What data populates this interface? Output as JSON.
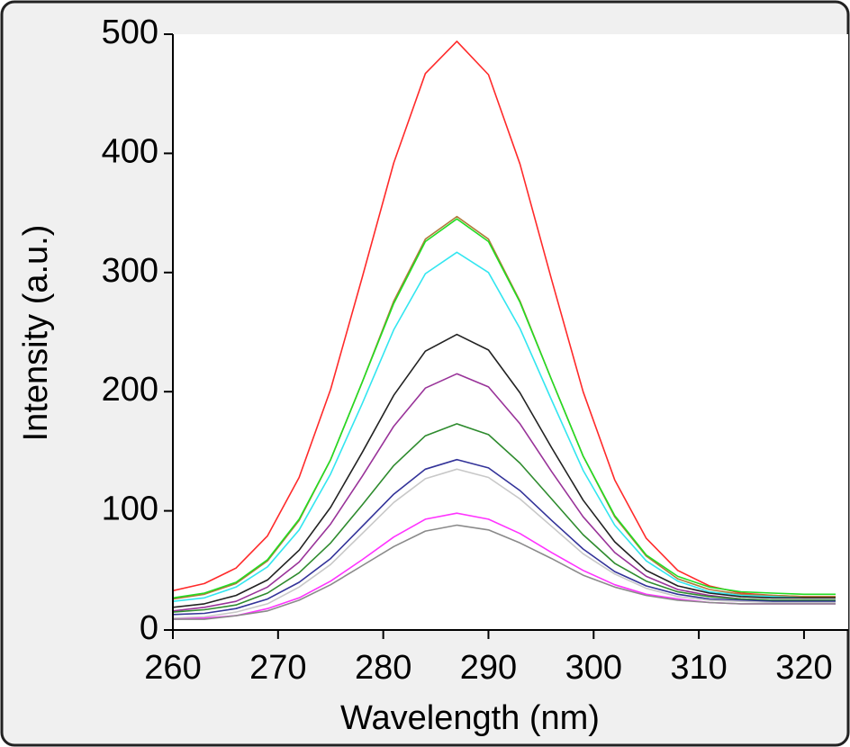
{
  "chart_data": {
    "type": "line",
    "xlabel": "Wavelength (nm)",
    "ylabel": "Intensity (a.u.)",
    "x": [
      260,
      263,
      266,
      269,
      272,
      275,
      278,
      281,
      284,
      287,
      290,
      293,
      296,
      299,
      302,
      305,
      308,
      311,
      314,
      317,
      320,
      323
    ],
    "xlim": [
      260,
      324.2
    ],
    "xticks": [
      260,
      270,
      280,
      290,
      300,
      310,
      320
    ],
    "ylim": [
      0,
      500
    ],
    "yticks": [
      0,
      100,
      200,
      300,
      400,
      500
    ],
    "series": [
      {
        "color": "#ff2a2a",
        "values": [
          33,
          39,
          52,
          79,
          128,
          202,
          296,
          392,
          467,
          494,
          466,
          391,
          294,
          200,
          126,
          77,
          50,
          37,
          31,
          29,
          28,
          28
        ]
      },
      {
        "color": "#b07a3a",
        "values": [
          26,
          30,
          39,
          58,
          92,
          143,
          208,
          276,
          328,
          347,
          328,
          276,
          210,
          146,
          95,
          62,
          43,
          34,
          30,
          29,
          28,
          28
        ]
      },
      {
        "color": "#22dd22",
        "values": [
          27,
          31,
          40,
          59,
          93,
          143,
          208,
          274,
          326,
          345,
          326,
          275,
          210,
          146,
          96,
          63,
          45,
          36,
          32,
          31,
          30,
          30
        ]
      },
      {
        "color": "#33e6f0",
        "values": [
          24,
          27,
          36,
          53,
          84,
          131,
          190,
          252,
          299,
          317,
          300,
          253,
          193,
          134,
          88,
          58,
          41,
          32,
          29,
          28,
          27,
          27
        ]
      },
      {
        "color": "#222222",
        "values": [
          19,
          22,
          29,
          42,
          67,
          103,
          149,
          197,
          234,
          248,
          235,
          199,
          153,
          109,
          74,
          50,
          37,
          31,
          28,
          27,
          27,
          27
        ]
      },
      {
        "color": "#993399",
        "values": [
          16,
          19,
          24,
          36,
          57,
          89,
          129,
          171,
          203,
          215,
          204,
          173,
          133,
          95,
          65,
          45,
          34,
          29,
          26,
          25,
          25,
          25
        ]
      },
      {
        "color": "#2e8b2e",
        "values": [
          15,
          17,
          21,
          31,
          48,
          73,
          105,
          138,
          163,
          173,
          164,
          140,
          110,
          80,
          56,
          41,
          32,
          28,
          26,
          25,
          25,
          25
        ]
      },
      {
        "color": "#333399",
        "values": [
          13,
          14,
          18,
          26,
          40,
          60,
          87,
          114,
          135,
          143,
          136,
          117,
          92,
          68,
          49,
          37,
          30,
          26,
          25,
          24,
          24,
          24
        ]
      },
      {
        "color": "#c8c8c8",
        "values": [
          10,
          11,
          15,
          22,
          36,
          55,
          81,
          107,
          127,
          135,
          128,
          110,
          87,
          64,
          47,
          35,
          28,
          25,
          24,
          23,
          23,
          23
        ]
      },
      {
        "color": "#ff33ff",
        "values": [
          9,
          10,
          12,
          18,
          27,
          41,
          59,
          78,
          93,
          98,
          93,
          81,
          65,
          50,
          38,
          30,
          26,
          23,
          22,
          22,
          22,
          22
        ]
      },
      {
        "color": "#8a8a8a",
        "values": [
          9,
          9,
          12,
          16,
          25,
          38,
          54,
          70,
          83,
          88,
          84,
          73,
          60,
          46,
          36,
          29,
          25,
          23,
          22,
          22,
          22,
          22
        ]
      }
    ]
  }
}
